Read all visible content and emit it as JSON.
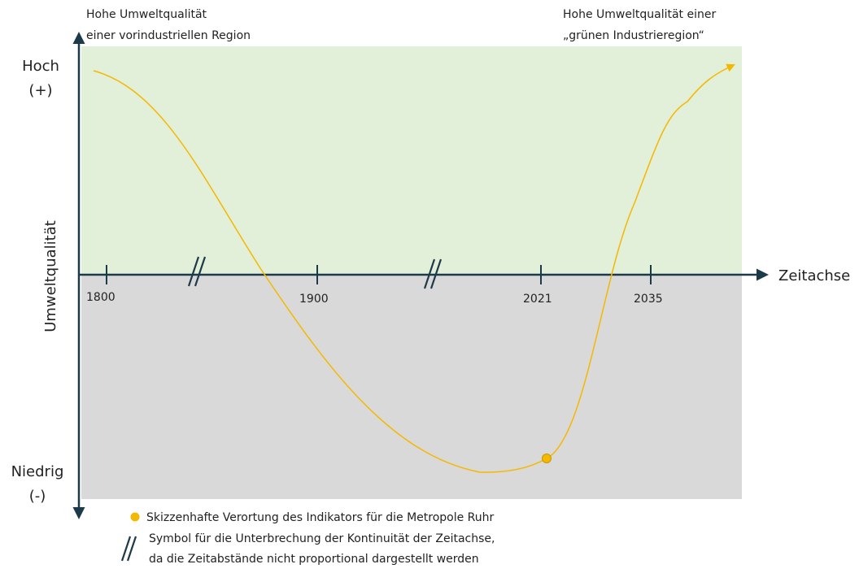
{
  "top_left_label": [
    "Hohe Umweltqualität",
    "einer vorindustriellen Region"
  ],
  "top_right_label": [
    "Hohe Umweltqualität einer",
    "„grünen Industrieregion“"
  ],
  "y_axis": {
    "title": "Umweltqualität",
    "high": [
      "Hoch",
      "(+)"
    ],
    "low": [
      "Niedrig",
      "(-)"
    ]
  },
  "x_axis": {
    "title": "Zeitachse",
    "ticks": [
      "1800",
      "1900",
      "2021",
      "2035"
    ]
  },
  "legend": {
    "indicator": "Skizzenhafte Verortung des Indikators für die Metropole Ruhr",
    "break": [
      "Symbol für die Unterbrechung der Kontinuität der Zeitachse,",
      "da die Zeitabstände nicht proportional dargestellt werden"
    ]
  }
}
